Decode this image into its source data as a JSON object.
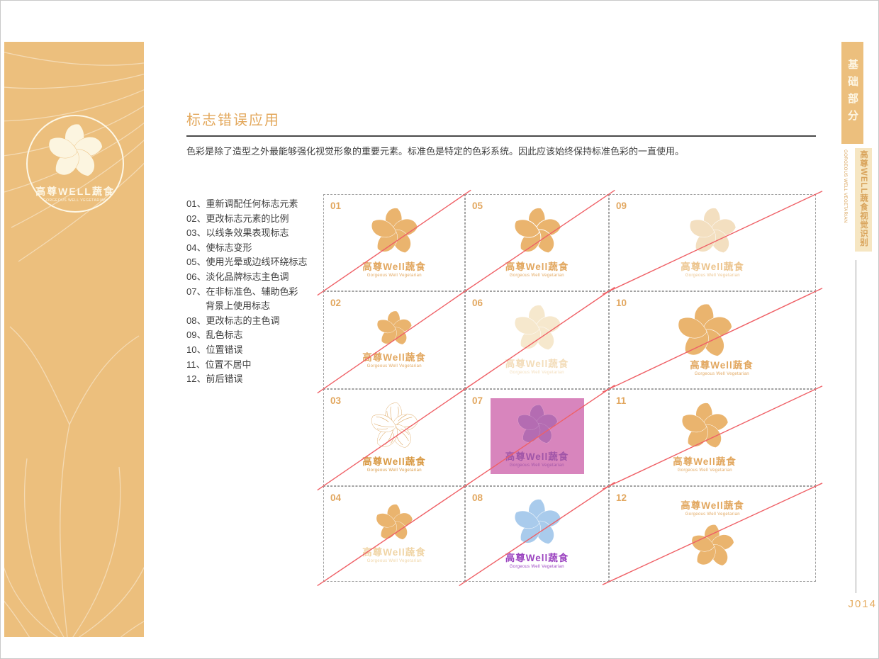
{
  "sidebar": {
    "logo_zh": "高尊WELL蔬食",
    "logo_en": "GORGEOUS WELL VEGETARIAN"
  },
  "right_rail": {
    "tab_label": "基础部分",
    "brand_vertical_zh": "高尊WELL蔬食视觉识别",
    "brand_vertical_en": "GORGEOUS WELL VEGETARIAN",
    "page_code": "J014"
  },
  "content": {
    "title": "标志错误应用",
    "intro": "色彩是除了造型之外最能够强化视觉形象的重要元素。标准色是特定的色彩系统。因此应该始终保持标准色彩的一直使用。",
    "rules": [
      {
        "text": "01、重新调配任何标志元素",
        "indent": false
      },
      {
        "text": "02、更改标志元素的比例",
        "indent": false
      },
      {
        "text": "03、以线条效果表现标志",
        "indent": false
      },
      {
        "text": "04、使标志变形",
        "indent": false
      },
      {
        "text": "05、使用光晕或边线环绕标志",
        "indent": false
      },
      {
        "text": "06、淡化品牌标志主色调",
        "indent": false
      },
      {
        "text": "07、在非标准色、辅助色彩",
        "indent": false
      },
      {
        "text": "背景上使用标志",
        "indent": true
      },
      {
        "text": "08、更改标志的主色调",
        "indent": false
      },
      {
        "text": "09、乱色标志",
        "indent": false
      },
      {
        "text": "10、位置错误",
        "indent": false
      },
      {
        "text": "11、位置不居中",
        "indent": false
      },
      {
        "text": "12、前后错误",
        "indent": false
      }
    ]
  },
  "grid": {
    "logo_text_zh": "高尊Well蔬食",
    "logo_text_en": "Gorgeous Well Vegetarian",
    "cells": [
      {
        "num": "01",
        "variant": "normal",
        "flower": "#eab46e",
        "text": "#e2a75f"
      },
      {
        "num": "02",
        "variant": "small",
        "flower": "#eab46e",
        "text": "#e2a75f"
      },
      {
        "num": "03",
        "variant": "outline",
        "flower": "#ffffff",
        "stroke": "#dca45c",
        "text": "#d99a45"
      },
      {
        "num": "04",
        "variant": "distorted",
        "flower": "#eab46e",
        "text": "#f0d5a6"
      },
      {
        "num": "05",
        "variant": "halo",
        "flower": "#eab46e",
        "text": "#e2a75f"
      },
      {
        "num": "06",
        "variant": "faded",
        "flower": "#f6e8cd",
        "text": "#f3ddba"
      },
      {
        "num": "07",
        "variant": "bg-square",
        "bg": "#d885bd",
        "flower": "#b46cb2",
        "text": "#a055a8"
      },
      {
        "num": "08",
        "variant": "recolored",
        "flower": "#a9cbec",
        "text": "#9b44c0"
      },
      {
        "num": "09",
        "variant": "off-color",
        "flower": "#f3dfc0",
        "text": "#ecc48d"
      },
      {
        "num": "10",
        "variant": "position-error",
        "flower": "#eab46e",
        "text": "#e2a75f"
      },
      {
        "num": "11",
        "variant": "off-center",
        "flower": "#eab46e",
        "text": "#e2a75f"
      },
      {
        "num": "12",
        "variant": "order-reversed",
        "flower": "#eab46e",
        "text": "#e2a75f"
      }
    ],
    "crossline_color": "#ef6066"
  }
}
